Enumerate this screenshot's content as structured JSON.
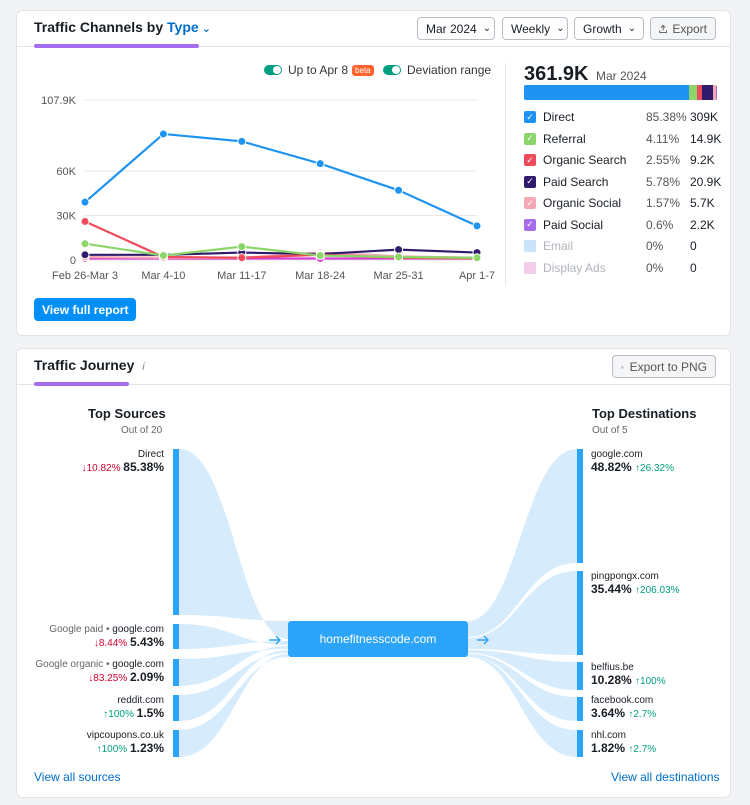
{
  "traffic_channels": {
    "title_prefix": "Traffic Channels by",
    "title_accent": "Type",
    "month": "Mar 2024",
    "interval": "Weekly",
    "metric": "Growth",
    "export_label": "Export",
    "legend": {
      "up_to": "Up to Apr 8",
      "beta": "beta",
      "deviation": "Deviation range"
    },
    "view_full_report": "View full report",
    "total": {
      "value": "361.9K",
      "period": "Mar 2024"
    },
    "channels": [
      {
        "name": "Direct",
        "pct": "85.38%",
        "value": "309K",
        "share": 85.38,
        "color": "#1e93f2",
        "checked": true
      },
      {
        "name": "Referral",
        "pct": "4.11%",
        "value": "14.9K",
        "share": 4.11,
        "color": "#8cd569",
        "checked": true
      },
      {
        "name": "Organic Search",
        "pct": "2.55%",
        "value": "9.2K",
        "share": 2.55,
        "color": "#ef4b5c",
        "checked": true
      },
      {
        "name": "Paid Search",
        "pct": "5.78%",
        "value": "20.9K",
        "share": 5.78,
        "color": "#2f1a6c",
        "checked": true
      },
      {
        "name": "Organic Social",
        "pct": "1.57%",
        "value": "5.7K",
        "share": 1.57,
        "color": "#f3a8b3",
        "checked": true
      },
      {
        "name": "Paid Social",
        "pct": "0.6%",
        "value": "2.2K",
        "share": 0.6,
        "color": "#a76ce9",
        "checked": true
      },
      {
        "name": "Email",
        "pct": "0%",
        "value": "0",
        "share": 0,
        "color": "#c9e3fb",
        "checked": false
      },
      {
        "name": "Display Ads",
        "pct": "0%",
        "value": "0",
        "share": 0,
        "color": "#f2cce9",
        "checked": false
      }
    ]
  },
  "chart_data": {
    "type": "line",
    "x": [
      "Feb 26-Mar 3",
      "Mar 4-10",
      "Mar 11-17",
      "Mar 18-24",
      "Mar 25-31",
      "Apr 1-7"
    ],
    "y_ticks": [
      "107.9K",
      "60K",
      "30K",
      "0"
    ],
    "ylim": [
      0,
      107900
    ],
    "series": [
      {
        "name": "Direct",
        "color": "#1e93f2",
        "values": [
          39000,
          85000,
          80000,
          65000,
          47000,
          23000
        ]
      },
      {
        "name": "Referral",
        "color": "#8cd569",
        "values": [
          11000,
          3000,
          9000,
          3000,
          2000,
          1500
        ]
      },
      {
        "name": "Organic Search",
        "color": "#ef4b5c",
        "values": [
          26000,
          2000,
          1500,
          3500,
          1500,
          1000
        ]
      },
      {
        "name": "Paid Search",
        "color": "#2f1a6c",
        "values": [
          3500,
          3500,
          5000,
          4000,
          7000,
          5000
        ]
      },
      {
        "name": "Organic Social",
        "color": "#f3a8b3",
        "values": [
          2000,
          1500,
          1500,
          5000,
          2500,
          1500
        ]
      },
      {
        "name": "Paid Social",
        "color": "#d63ed6",
        "values": [
          1000,
          1000,
          1000,
          1000,
          1000,
          1000
        ]
      }
    ]
  },
  "traffic_journey": {
    "title": "Traffic Journey",
    "info_icon": "i",
    "export_label": "Export to PNG",
    "sources_title": "Top Sources",
    "sources_sub": "Out of 20",
    "destinations_title": "Top Destinations",
    "destinations_sub": "Out of 5",
    "center": "homefitnesscode.com",
    "sources": [
      {
        "prefix": "",
        "name": "Direct",
        "change": "↓10.82%",
        "dir": "down",
        "pct": "85.38%"
      },
      {
        "prefix": "Google paid •",
        "name": "google.com",
        "change": "↓8.44%",
        "dir": "down",
        "pct": "5.43%"
      },
      {
        "prefix": "Google organic •",
        "name": "google.com",
        "change": "↓83.25%",
        "dir": "down",
        "pct": "2.09%"
      },
      {
        "prefix": "",
        "name": "reddit.com",
        "change": "↑100%",
        "dir": "up",
        "pct": "1.5%"
      },
      {
        "prefix": "",
        "name": "vipcoupons.co.uk",
        "change": "↑100%",
        "dir": "up",
        "pct": "1.23%"
      }
    ],
    "destinations": [
      {
        "name": "google.com",
        "pct": "48.82%",
        "change": "↑26.32%"
      },
      {
        "name": "pingpongx.com",
        "pct": "35.44%",
        "change": "↑206.03%"
      },
      {
        "name": "belfius.be",
        "pct": "10.28%",
        "change": "↑100%"
      },
      {
        "name": "facebook.com",
        "pct": "3.64%",
        "change": "↑2.7%"
      },
      {
        "name": "nhl.com",
        "pct": "1.82%",
        "change": "↑2.7%"
      }
    ],
    "view_all_sources": "View all sources",
    "view_all_destinations": "View all destinations"
  }
}
